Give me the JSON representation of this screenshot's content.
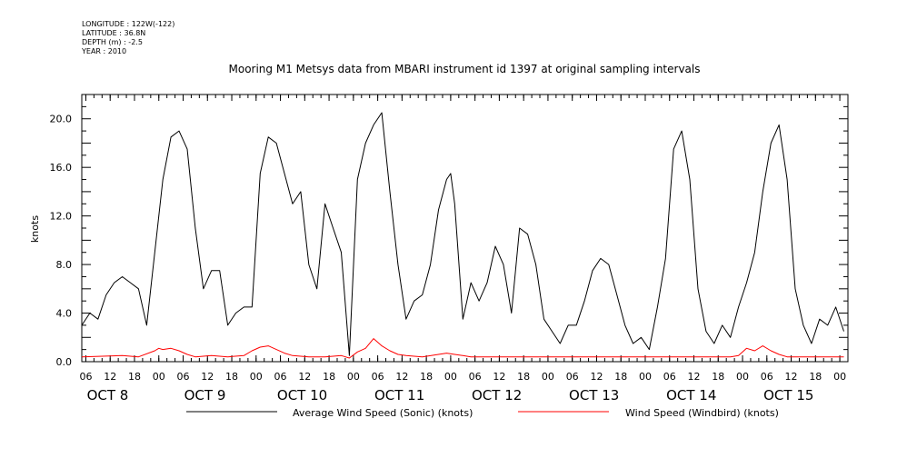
{
  "metadata": {
    "longitude": "LONGITUDE : 122W(-122)",
    "latitude": "LATITUDE : 36.8N",
    "depth": "DEPTH (m) : -2.5",
    "year": "YEAR : 2010"
  },
  "chart_data": {
    "type": "line",
    "title": "Mooring M1 Metsys data from MBARI instrument id 1397 at original sampling intervals",
    "ylabel": "knots",
    "xlabel": "",
    "ylim": [
      0,
      22
    ],
    "yticks": [
      "0.0",
      "4.0",
      "8.0",
      "12.0",
      "16.0",
      "20.0"
    ],
    "ytick_values": [
      0,
      4,
      8,
      12,
      16,
      20
    ],
    "xlim_hours": [
      -19,
      170
    ],
    "hour_ticks": [
      "06",
      "12",
      "18",
      "00",
      "06",
      "12",
      "18",
      "00",
      "06",
      "12",
      "18",
      "00",
      "06",
      "12",
      "18",
      "00",
      "06",
      "12",
      "18",
      "00",
      "06",
      "12",
      "18",
      "00",
      "06",
      "12",
      "18",
      "00",
      "06",
      "12",
      "18",
      "00"
    ],
    "day_labels": [
      "OCT 8",
      "OCT 9",
      "OCT 10",
      "OCT 11",
      "OCT 12",
      "OCT 13",
      "OCT 14",
      "OCT 15"
    ],
    "x_units": "hours after 2010-10-09 00:00",
    "grid": false,
    "legend": "bottom",
    "series": [
      {
        "name": "Average Wind Speed (Sonic) (knots)",
        "color": "#000000",
        "x": [
          -19,
          -17,
          -15,
          -13,
          -11,
          -9,
          -7,
          -5,
          -3,
          -1,
          1,
          3,
          5,
          7,
          9,
          11,
          13,
          15,
          17,
          19,
          21,
          23,
          25,
          27,
          29,
          31,
          33,
          35,
          37,
          39,
          41,
          43,
          45,
          47,
          49,
          51,
          53,
          55,
          57,
          59,
          61,
          63,
          65,
          67,
          69,
          71,
          72,
          73,
          75,
          77,
          79,
          81,
          83,
          85,
          87,
          89,
          91,
          93,
          95,
          97,
          99,
          101,
          103,
          105,
          107,
          109,
          111,
          113,
          115,
          117,
          119,
          121,
          123,
          125,
          127,
          129,
          131,
          133,
          135,
          137,
          139,
          141,
          143,
          145,
          147,
          149,
          151,
          153,
          155,
          157,
          159,
          161,
          163,
          165,
          167,
          169
        ],
        "values": [
          3.0,
          4.0,
          3.5,
          5.5,
          6.5,
          7.0,
          6.5,
          6.0,
          3.0,
          9.0,
          15.0,
          18.5,
          19.0,
          17.5,
          11.0,
          6.0,
          7.5,
          7.5,
          3.0,
          4.0,
          4.5,
          4.5,
          15.5,
          18.5,
          18.0,
          15.5,
          13.0,
          14.0,
          8.0,
          6.0,
          13.0,
          11.0,
          9.0,
          0.5,
          15.0,
          18.0,
          19.5,
          20.5,
          14.0,
          8.0,
          3.5,
          5.0,
          5.5,
          8.0,
          12.5,
          15.0,
          15.5,
          13.0,
          3.5,
          6.5,
          5.0,
          6.5,
          9.5,
          8.0,
          4.0,
          11.0,
          10.5,
          8.0,
          3.5,
          2.5,
          1.5,
          3.0,
          3.0,
          5.0,
          7.5,
          8.5,
          8.0,
          5.5,
          3.0,
          1.5,
          2.0,
          1.0,
          4.5,
          8.5,
          17.5,
          19.0,
          15.0,
          6.0,
          2.5,
          1.5,
          3.0,
          2.0,
          4.5,
          6.5,
          9.0,
          14.0,
          18.0,
          19.5,
          15.0,
          6.0,
          3.0,
          1.5,
          3.5,
          3.0,
          4.5,
          2.5
        ]
      },
      {
        "name": "Wind Speed (Windbird) (knots)",
        "color": "#ff0000",
        "x": [
          -19,
          -9,
          -5,
          -1,
          0,
          1,
          3,
          5,
          7,
          9,
          13,
          17,
          21,
          23,
          25,
          27,
          29,
          31,
          33,
          37,
          41,
          45,
          47,
          49,
          51,
          53,
          55,
          57,
          59,
          61,
          65,
          69,
          71,
          73,
          75,
          77,
          79,
          85,
          95,
          105,
          115,
          125,
          135,
          141,
          143,
          145,
          147,
          149,
          151,
          153,
          155,
          157,
          161,
          165,
          169
        ],
        "values": [
          0.4,
          0.5,
          0.4,
          0.9,
          1.1,
          1.0,
          1.1,
          0.9,
          0.6,
          0.4,
          0.5,
          0.4,
          0.5,
          0.9,
          1.2,
          1.3,
          1.0,
          0.7,
          0.5,
          0.4,
          0.4,
          0.5,
          0.3,
          0.8,
          1.1,
          1.9,
          1.3,
          0.9,
          0.6,
          0.5,
          0.4,
          0.6,
          0.7,
          0.6,
          0.5,
          0.4,
          0.4,
          0.4,
          0.4,
          0.4,
          0.4,
          0.4,
          0.4,
          0.4,
          0.5,
          1.1,
          0.9,
          1.3,
          0.9,
          0.6,
          0.4,
          0.4,
          0.4,
          0.4,
          0.4
        ]
      }
    ]
  }
}
